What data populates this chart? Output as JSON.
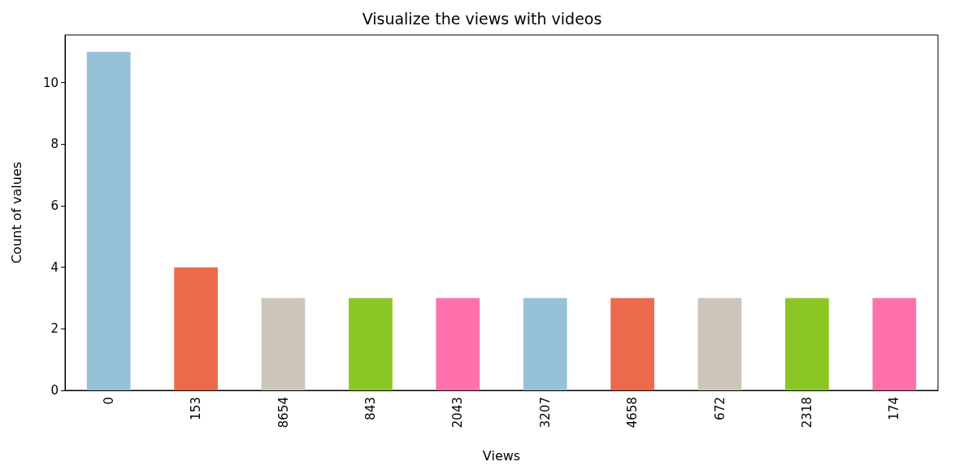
{
  "chart_data": {
    "type": "bar",
    "title": "Visualize the views with videos",
    "xlabel": "Views",
    "ylabel": "Count of values",
    "categories": [
      "0",
      "153",
      "8654",
      "843",
      "2043",
      "3207",
      "4658",
      "672",
      "2318",
      "174"
    ],
    "values": [
      11,
      4,
      3,
      3,
      3,
      3,
      3,
      3,
      3,
      3
    ],
    "colors": [
      "#97c0d9",
      "#ec6a4c",
      "#ccc6b8",
      "#8bc724",
      "#ff71aa",
      "#97c0d9",
      "#ec6a4c",
      "#ccc6b8",
      "#8bc724",
      "#ff71aa"
    ],
    "ylim": [
      0,
      11.55
    ],
    "yticks": [
      0,
      2,
      4,
      6,
      8,
      10
    ],
    "grid": false
  }
}
